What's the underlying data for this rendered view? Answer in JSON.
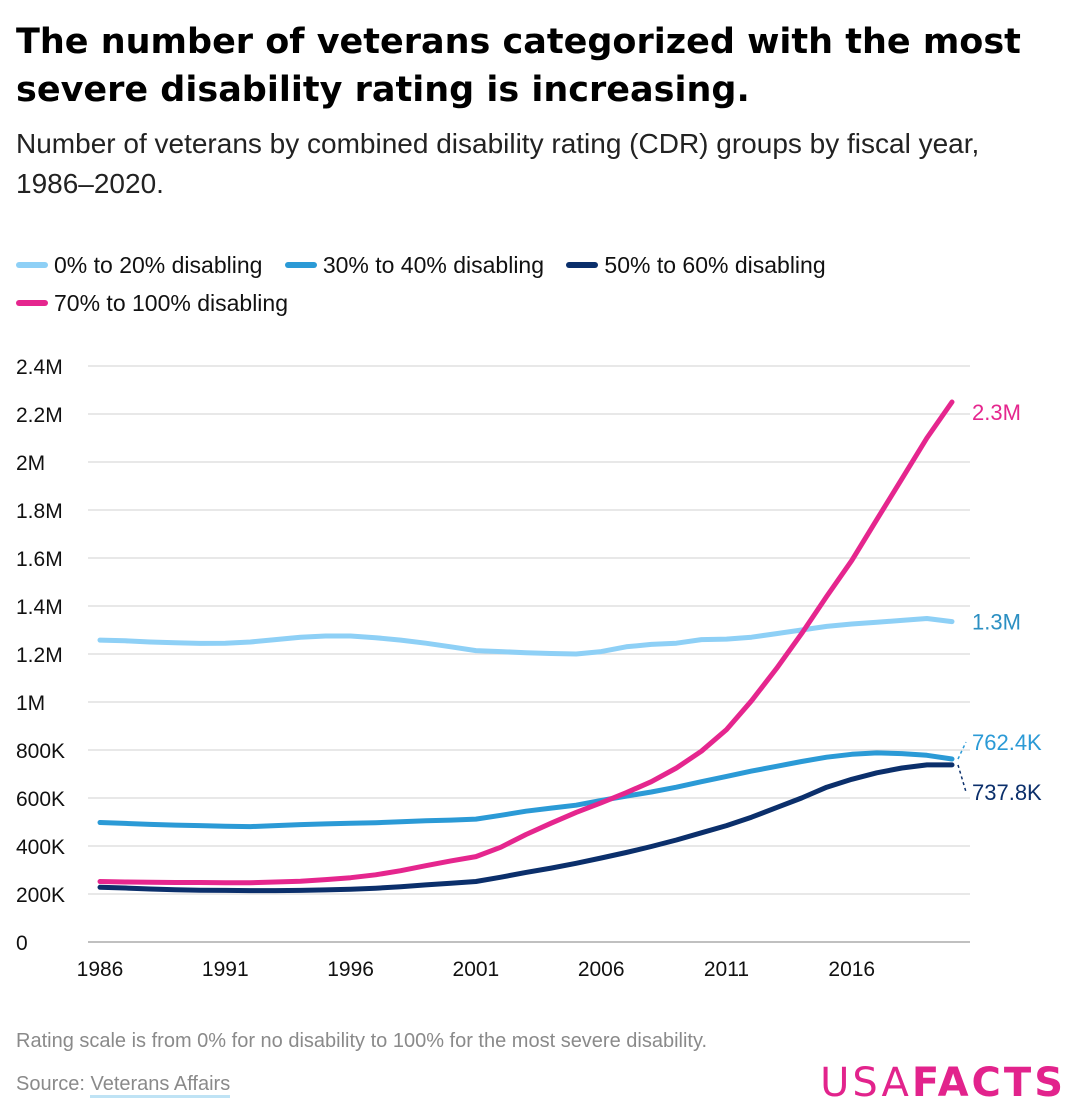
{
  "title": "The number of veterans categorized with the most severe disability rating is increasing.",
  "subtitle": "Number of veterans by combined disability rating (CDR) groups by fiscal year, 1986–2020.",
  "footnote": "Rating scale is from 0% for no disability to 100% for the most severe disability.",
  "source": {
    "prefix": "Source: ",
    "link_text": "Veterans Affairs"
  },
  "logo": {
    "light": "USA",
    "bold": "FACTS",
    "color": "#e2238c"
  },
  "chart_data": {
    "type": "line",
    "x": [
      1986,
      1987,
      1988,
      1989,
      1990,
      1991,
      1992,
      1993,
      1994,
      1995,
      1996,
      1997,
      1998,
      1999,
      2000,
      2001,
      2002,
      2003,
      2004,
      2005,
      2006,
      2007,
      2008,
      2009,
      2010,
      2011,
      2012,
      2013,
      2014,
      2015,
      2016,
      2017,
      2018,
      2019,
      2020
    ],
    "xticks": [
      1986,
      1991,
      1996,
      2001,
      2006,
      2011,
      2016
    ],
    "xlim": [
      1986,
      2020
    ],
    "ylim": [
      0,
      2400000
    ],
    "yticks": [
      {
        "value": 0,
        "label": "0"
      },
      {
        "value": 200000,
        "label": "200K"
      },
      {
        "value": 400000,
        "label": "400K"
      },
      {
        "value": 600000,
        "label": "600K"
      },
      {
        "value": 800000,
        "label": "800K"
      },
      {
        "value": 1000000,
        "label": "1M"
      },
      {
        "value": 1200000,
        "label": "1.2M"
      },
      {
        "value": 1400000,
        "label": "1.4M"
      },
      {
        "value": 1600000,
        "label": "1.6M"
      },
      {
        "value": 1800000,
        "label": "1.8M"
      },
      {
        "value": 2000000,
        "label": "2M"
      },
      {
        "value": 2200000,
        "label": "2.2M"
      },
      {
        "value": 2400000,
        "label": "2.4M"
      }
    ],
    "grid": true,
    "legend_position": "top",
    "series": [
      {
        "name": "0% to 20% disabling",
        "color": "#8ed0f6",
        "end_label": "1.3M",
        "end_label_color": "#2b8fc2",
        "values": [
          1258000,
          1255000,
          1250000,
          1247000,
          1244000,
          1245000,
          1250000,
          1260000,
          1270000,
          1275000,
          1275000,
          1268000,
          1258000,
          1245000,
          1230000,
          1214000,
          1210000,
          1205000,
          1202000,
          1200000,
          1210000,
          1230000,
          1240000,
          1245000,
          1260000,
          1262000,
          1270000,
          1285000,
          1300000,
          1315000,
          1325000,
          1332000,
          1340000,
          1348000,
          1335000
        ]
      },
      {
        "name": "30% to 40% disabling",
        "color": "#2b9ad6",
        "end_label": "762.4K",
        "end_label_color": "#2b9ad6",
        "values": [
          498000,
          494000,
          490000,
          487000,
          485000,
          482000,
          481000,
          485000,
          489000,
          492000,
          495000,
          497000,
          501000,
          505000,
          508000,
          512000,
          528000,
          545000,
          558000,
          570000,
          590000,
          608000,
          625000,
          645000,
          668000,
          690000,
          712000,
          732000,
          752000,
          770000,
          782000,
          788000,
          785000,
          778000,
          762400
        ]
      },
      {
        "name": "50% to 60% disabling",
        "color": "#0b2f6b",
        "end_label": "737.8K",
        "end_label_color": "#0b2f6b",
        "values": [
          228000,
          225000,
          221000,
          218000,
          216000,
          215000,
          214000,
          214000,
          215000,
          217000,
          220000,
          224000,
          230000,
          238000,
          245000,
          252000,
          270000,
          290000,
          308000,
          328000,
          350000,
          373000,
          398000,
          425000,
          455000,
          485000,
          520000,
          560000,
          600000,
          645000,
          678000,
          705000,
          725000,
          738000,
          737800
        ]
      },
      {
        "name": "70% to 100% disabling",
        "color": "#e5268e",
        "end_label": "2.3M",
        "end_label_color": "#e5268e",
        "values": [
          252000,
          250000,
          249000,
          248000,
          248000,
          247000,
          247000,
          250000,
          253000,
          260000,
          268000,
          280000,
          297000,
          318000,
          338000,
          356000,
          395000,
          448000,
          495000,
          540000,
          580000,
          622000,
          668000,
          725000,
          795000,
          885000,
          1005000,
          1140000,
          1285000,
          1440000,
          1590000,
          1760000,
          1930000,
          2100000,
          2250000
        ]
      }
    ]
  }
}
